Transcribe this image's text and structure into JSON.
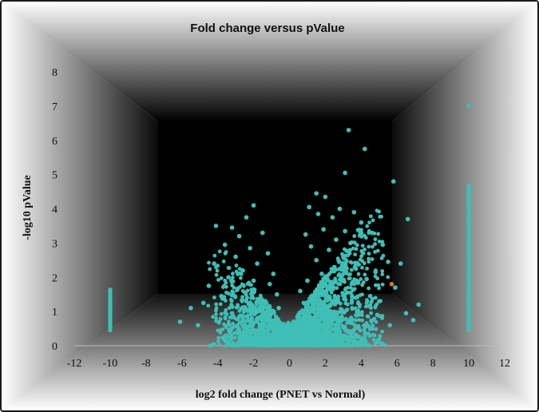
{
  "chart_data": {
    "type": "scatter",
    "title": "Fold change versus pValue",
    "xlabel": "log2 fold change (PNET vs Normal)",
    "ylabel": "-log10 pValue",
    "xlim": [
      -12,
      12
    ],
    "ylim": [
      0,
      8
    ],
    "xticks": [
      "-12",
      "-10",
      "-8",
      "-6",
      "-4",
      "-2",
      "0",
      "2",
      "4",
      "6",
      "8",
      "10",
      "12"
    ],
    "yticks": [
      "0",
      "1",
      "2",
      "3",
      "4",
      "5",
      "6",
      "7",
      "8"
    ],
    "grid": false,
    "legend": "none",
    "colors": {
      "points": "#3fbfb6",
      "highlight": "#e2703a",
      "inner_wall": "#000000",
      "outer_wall": "#ffffff"
    },
    "series": [
      {
        "color": "#3fbfb6",
        "points": [
          [
            3.3,
            6.3
          ],
          [
            4.2,
            5.75
          ],
          [
            3.1,
            5.05
          ],
          [
            5.8,
            4.8
          ],
          [
            1.5,
            4.45
          ],
          [
            2.0,
            4.35
          ],
          [
            -2.0,
            4.1
          ],
          [
            1.1,
            4.05
          ],
          [
            2.8,
            4.0
          ],
          [
            3.6,
            3.9
          ],
          [
            1.6,
            3.85
          ],
          [
            2.4,
            3.75
          ],
          [
            -2.4,
            3.75
          ],
          [
            6.6,
            3.7
          ],
          [
            4.0,
            3.6
          ],
          [
            -4.1,
            3.5
          ],
          [
            -3.2,
            3.45
          ],
          [
            1.9,
            3.4
          ],
          [
            3.1,
            3.35
          ],
          [
            4.6,
            3.3
          ],
          [
            0.9,
            3.25
          ],
          [
            -1.5,
            3.3
          ],
          [
            -2.8,
            3.2
          ],
          [
            2.6,
            3.1
          ],
          [
            3.4,
            3.0
          ],
          [
            5.2,
            2.95
          ],
          [
            -3.6,
            2.95
          ],
          [
            1.2,
            2.9
          ],
          [
            -2.2,
            2.85
          ],
          [
            2.2,
            2.8
          ],
          [
            4.1,
            2.7
          ],
          [
            -1.2,
            2.7
          ],
          [
            -3.0,
            2.6
          ],
          [
            3.0,
            2.6
          ],
          [
            1.5,
            2.5
          ],
          [
            5.5,
            2.45
          ],
          [
            6.2,
            2.4
          ],
          [
            -4.2,
            2.4
          ],
          [
            -1.8,
            2.4
          ],
          [
            2.5,
            2.3
          ],
          [
            3.7,
            2.25
          ],
          [
            -2.6,
            2.2
          ],
          [
            4.8,
            2.15
          ],
          [
            -0.9,
            2.1
          ],
          [
            1.8,
            2.1
          ],
          [
            -3.4,
            2.0
          ],
          [
            2.9,
            2.0
          ],
          [
            4.3,
            1.95
          ],
          [
            -2.0,
            1.9
          ],
          [
            1.0,
            1.9
          ],
          [
            3.5,
            1.85
          ],
          [
            -1.1,
            1.8
          ],
          [
            -4.5,
            1.75
          ],
          [
            5.9,
            1.7
          ],
          [
            2.3,
            1.7
          ],
          [
            -2.9,
            1.65
          ],
          [
            0.6,
            1.6
          ],
          [
            3.2,
            1.55
          ],
          [
            -0.7,
            1.5
          ],
          [
            1.6,
            1.5
          ],
          [
            -3.8,
            1.45
          ],
          [
            4.5,
            1.45
          ],
          [
            -1.6,
            1.4
          ],
          [
            2.7,
            1.35
          ],
          [
            5.0,
            1.3
          ],
          [
            -2.4,
            1.3
          ],
          [
            0.8,
            1.25
          ],
          [
            -4.8,
            1.25
          ],
          [
            3.9,
            1.2
          ],
          [
            7.2,
            1.2
          ],
          [
            -5.5,
            1.1
          ],
          [
            -0.6,
            1.1
          ],
          [
            1.3,
            1.1
          ],
          [
            2.1,
            1.05
          ],
          [
            6.5,
            0.95
          ],
          [
            -3.2,
            0.95
          ],
          [
            4.9,
            0.9
          ],
          [
            -1.3,
            0.9
          ],
          [
            0.5,
            0.85
          ],
          [
            -6.1,
            0.7
          ],
          [
            6.9,
            0.75
          ],
          [
            5.6,
            0.6
          ],
          [
            -5.1,
            0.6
          ],
          [
            3.3,
            0.7
          ],
          [
            -2.6,
            0.75
          ],
          [
            1.7,
            0.75
          ],
          [
            -0.4,
            0.6
          ],
          [
            0.3,
            0.5
          ],
          [
            -0.2,
            0.3
          ],
          [
            0.1,
            0.2
          ],
          [
            0.0,
            0.05
          ]
        ]
      },
      {
        "color": "#e2703a",
        "points": [
          [
            5.7,
            1.8
          ]
        ]
      }
    ]
  }
}
